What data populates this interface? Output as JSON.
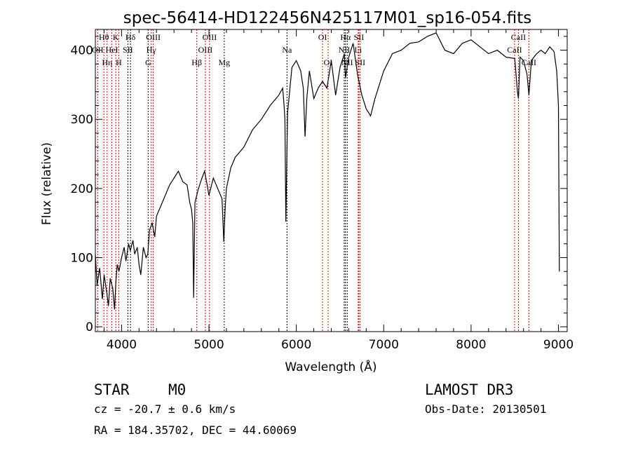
{
  "chart_data": {
    "type": "line",
    "title": "spec-56414-HD122456N425117M01_sp16-054.fits",
    "xlabel": "Wavelength (Å)",
    "ylabel": "Flux (relative)",
    "xlim": [
      3700,
      9100
    ],
    "ylim": [
      -7,
      430
    ],
    "xticks": [
      4000,
      5000,
      6000,
      7000,
      8000,
      9000
    ],
    "xtick_labels": [
      "4000",
      "5000",
      "6000",
      "7000",
      "8000",
      "9000"
    ],
    "yticks": [
      0,
      100,
      200,
      300,
      400
    ],
    "ytick_labels": [
      "0",
      "100",
      "200",
      "300",
      "400"
    ],
    "grid": false,
    "series": [
      {
        "name": "spectrum",
        "x": [
          3700,
          3720,
          3750,
          3780,
          3800,
          3830,
          3850,
          3870,
          3900,
          3920,
          3935,
          3950,
          3970,
          4000,
          4030,
          4050,
          4080,
          4100,
          4130,
          4150,
          4180,
          4200,
          4220,
          4250,
          4280,
          4300,
          4320,
          4350,
          4380,
          4400,
          4450,
          4500,
          4550,
          4600,
          4650,
          4700,
          4750,
          4780,
          4800,
          4815,
          4825,
          4840,
          4880,
          4920,
          4950,
          4980,
          5000,
          5050,
          5100,
          5150,
          5170,
          5185,
          5200,
          5250,
          5300,
          5400,
          5500,
          5600,
          5700,
          5800,
          5844,
          5860,
          5870,
          5880,
          5900,
          5950,
          6000,
          6050,
          6080,
          6100,
          6120,
          6150,
          6200,
          6250,
          6300,
          6350,
          6400,
          6450,
          6500,
          6550,
          6563,
          6600,
          6650,
          6700,
          6750,
          6800,
          6850,
          6900,
          7000,
          7100,
          7200,
          7300,
          7400,
          7500,
          7600,
          7700,
          7800,
          7900,
          8000,
          8100,
          8200,
          8300,
          8400,
          8500,
          8530,
          8542,
          8560,
          8600,
          8640,
          8662,
          8690,
          8750,
          8800,
          8850,
          8900,
          8950,
          8980,
          9000,
          9010
        ],
        "y": [
          105,
          60,
          85,
          40,
          75,
          50,
          30,
          70,
          55,
          25,
          65,
          90,
          80,
          100,
          115,
          95,
          120,
          110,
          125,
          105,
          115,
          90,
          75,
          115,
          100,
          105,
          140,
          150,
          130,
          160,
          175,
          190,
          205,
          215,
          225,
          210,
          205,
          180,
          170,
          150,
          42,
          180,
          200,
          215,
          225,
          205,
          190,
          215,
          200,
          185,
          123,
          170,
          200,
          230,
          245,
          260,
          285,
          300,
          320,
          335,
          345,
          320,
          300,
          152,
          310,
          375,
          385,
          370,
          345,
          275,
          330,
          370,
          330,
          345,
          355,
          345,
          385,
          335,
          375,
          395,
          360,
          390,
          410,
          365,
          335,
          315,
          305,
          330,
          370,
          395,
          400,
          410,
          412,
          420,
          425,
          400,
          395,
          410,
          415,
          405,
          395,
          400,
          390,
          388,
          340,
          330,
          390,
          385,
          365,
          335,
          385,
          395,
          400,
          395,
          405,
          398,
          370,
          320,
          80
        ]
      }
    ],
    "lines": [
      {
        "w": 3727,
        "label": "OII",
        "row": 2,
        "color": "red"
      },
      {
        "w": 3798,
        "label": "Hθ",
        "row": 1,
        "color": "red"
      },
      {
        "w": 3835,
        "label": "Hη",
        "row": 3,
        "color": "red"
      },
      {
        "w": 3889,
        "label": "HeI",
        "row": 2,
        "color": "red"
      },
      {
        "w": 3934,
        "label": "K",
        "row": 1,
        "color": "red"
      },
      {
        "w": 3968,
        "label": "H",
        "row": 3,
        "color": "red"
      },
      {
        "w": 4072,
        "label": "SII",
        "row": 2,
        "color": "black"
      },
      {
        "w": 4102,
        "label": "Hδ",
        "row": 1,
        "color": "black"
      },
      {
        "w": 4304,
        "label": "G",
        "row": 3,
        "color": "black"
      },
      {
        "w": 4340,
        "label": "Hγ",
        "row": 2,
        "color": "red"
      },
      {
        "w": 4363,
        "label": "OIII",
        "row": 1,
        "color": "red"
      },
      {
        "w": 4861,
        "label": "Hβ",
        "row": 3,
        "color": "red"
      },
      {
        "w": 4959,
        "label": "OIII",
        "row": 2,
        "color": "red"
      },
      {
        "w": 5007,
        "label": "OIII",
        "row": 1,
        "color": "red"
      },
      {
        "w": 5175,
        "label": "Mg",
        "row": 3,
        "color": "black"
      },
      {
        "w": 5893,
        "label": "Na",
        "row": 2,
        "color": "black"
      },
      {
        "w": 6300,
        "label": "OI",
        "row": 1,
        "color": "red"
      },
      {
        "w": 6364,
        "label": "OI",
        "row": 3,
        "color": "red"
      },
      {
        "w": 6548,
        "label": "NII",
        "row": 2,
        "color": "black"
      },
      {
        "w": 6563,
        "label": "Hα",
        "row": 1,
        "color": "black"
      },
      {
        "w": 6583,
        "label": "NII",
        "row": 3,
        "color": "black"
      },
      {
        "w": 6708,
        "label": "Li",
        "row": 2,
        "color": "red"
      },
      {
        "w": 6716,
        "label": "SII",
        "row": 1,
        "color": "red"
      },
      {
        "w": 6731,
        "label": "SII",
        "row": 3,
        "color": "red"
      },
      {
        "w": 8498,
        "label": "CaII",
        "row": 2,
        "color": "red"
      },
      {
        "w": 8542,
        "label": "CaII",
        "row": 1,
        "color": "red"
      },
      {
        "w": 8662,
        "label": "CaII",
        "row": 3,
        "color": "red"
      }
    ]
  },
  "footer": {
    "class": "STAR",
    "subclass": "M0",
    "cz": "cz = -20.7 ± 0.6 km/s",
    "radec": "RA = 184.35702, DEC =  44.60069",
    "survey": "LAMOST DR3",
    "obsdate": "Obs-Date: 20130501"
  }
}
